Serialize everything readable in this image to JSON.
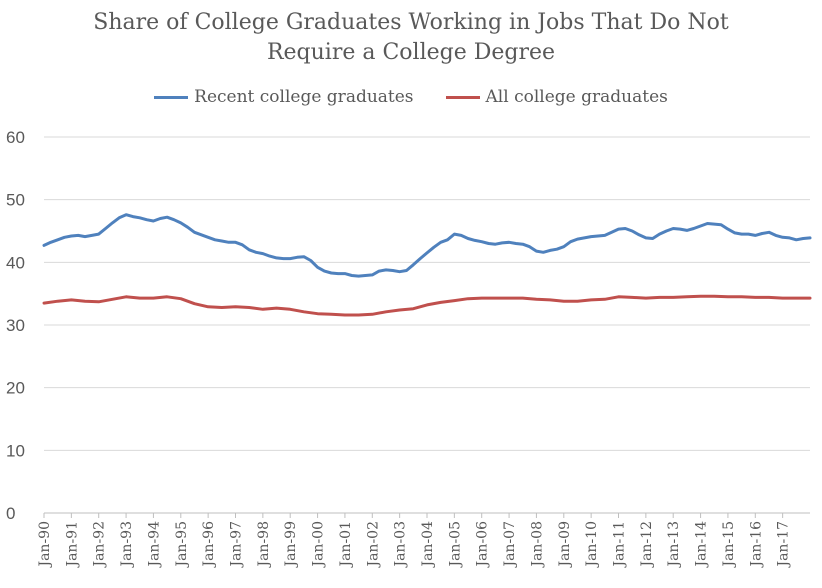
{
  "chart_data": {
    "type": "line",
    "title": "Share of College Graduates Working in Jobs That Do Not",
    "title_line2": "Require a College Degree",
    "legend_position": "top",
    "grid": true,
    "ylim": [
      0,
      60
    ],
    "yticks": [
      "0",
      "10",
      "20",
      "30",
      "40",
      "50",
      "60"
    ],
    "x": [
      "Jan-90",
      "Jan-91",
      "Jan-92",
      "Jan-93",
      "Jan-94",
      "Jan-95",
      "Jan-96",
      "Jan-97",
      "Jan-98",
      "Jan-99",
      "Jan-00",
      "Jan-01",
      "Jan-02",
      "Jan-03",
      "Jan-04",
      "Jan-05",
      "Jan-06",
      "Jan-07",
      "Jan-08",
      "Jan-09",
      "Jan-10",
      "Jan-11",
      "Jan-12",
      "Jan-13",
      "Jan-14",
      "Jan-15",
      "Jan-16",
      "Jan-17"
    ],
    "series": [
      {
        "name": "Recent college graduates",
        "color": "#4f81bd",
        "points": [
          [
            0.0,
            42.7
          ],
          [
            0.25,
            43.2
          ],
          [
            0.5,
            43.6
          ],
          [
            0.75,
            44.0
          ],
          [
            1.0,
            44.2
          ],
          [
            1.25,
            44.3
          ],
          [
            1.5,
            44.1
          ],
          [
            1.75,
            44.3
          ],
          [
            2.0,
            44.5
          ],
          [
            2.25,
            45.4
          ],
          [
            2.5,
            46.3
          ],
          [
            2.75,
            47.1
          ],
          [
            3.0,
            47.6
          ],
          [
            3.25,
            47.3
          ],
          [
            3.5,
            47.1
          ],
          [
            3.75,
            46.8
          ],
          [
            4.0,
            46.6
          ],
          [
            4.25,
            47.0
          ],
          [
            4.5,
            47.2
          ],
          [
            4.75,
            46.8
          ],
          [
            5.0,
            46.3
          ],
          [
            5.25,
            45.6
          ],
          [
            5.5,
            44.8
          ],
          [
            5.75,
            44.4
          ],
          [
            6.0,
            44.0
          ],
          [
            6.25,
            43.6
          ],
          [
            6.5,
            43.4
          ],
          [
            6.75,
            43.2
          ],
          [
            7.0,
            43.2
          ],
          [
            7.25,
            42.8
          ],
          [
            7.5,
            42.0
          ],
          [
            7.75,
            41.6
          ],
          [
            8.0,
            41.4
          ],
          [
            8.25,
            41.0
          ],
          [
            8.5,
            40.7
          ],
          [
            8.75,
            40.6
          ],
          [
            9.0,
            40.6
          ],
          [
            9.25,
            40.8
          ],
          [
            9.5,
            40.9
          ],
          [
            9.75,
            40.3
          ],
          [
            10.0,
            39.2
          ],
          [
            10.25,
            38.6
          ],
          [
            10.5,
            38.3
          ],
          [
            10.75,
            38.2
          ],
          [
            11.0,
            38.2
          ],
          [
            11.25,
            37.9
          ],
          [
            11.5,
            37.8
          ],
          [
            11.75,
            37.9
          ],
          [
            12.0,
            38.0
          ],
          [
            12.25,
            38.6
          ],
          [
            12.5,
            38.8
          ],
          [
            12.75,
            38.7
          ],
          [
            13.0,
            38.5
          ],
          [
            13.25,
            38.7
          ],
          [
            13.5,
            39.6
          ],
          [
            13.75,
            40.6
          ],
          [
            14.0,
            41.5
          ],
          [
            14.25,
            42.4
          ],
          [
            14.5,
            43.2
          ],
          [
            14.75,
            43.6
          ],
          [
            15.0,
            44.5
          ],
          [
            15.25,
            44.3
          ],
          [
            15.5,
            43.8
          ],
          [
            15.75,
            43.5
          ],
          [
            16.0,
            43.3
          ],
          [
            16.25,
            43.0
          ],
          [
            16.5,
            42.9
          ],
          [
            16.75,
            43.1
          ],
          [
            17.0,
            43.2
          ],
          [
            17.25,
            43.0
          ],
          [
            17.5,
            42.9
          ],
          [
            17.75,
            42.5
          ],
          [
            18.0,
            41.8
          ],
          [
            18.25,
            41.6
          ],
          [
            18.5,
            41.9
          ],
          [
            18.75,
            42.1
          ],
          [
            19.0,
            42.5
          ],
          [
            19.25,
            43.3
          ],
          [
            19.5,
            43.7
          ],
          [
            19.75,
            43.9
          ],
          [
            20.0,
            44.1
          ],
          [
            20.25,
            44.2
          ],
          [
            20.5,
            44.3
          ],
          [
            20.75,
            44.8
          ],
          [
            21.0,
            45.3
          ],
          [
            21.25,
            45.4
          ],
          [
            21.5,
            45.0
          ],
          [
            21.75,
            44.4
          ],
          [
            22.0,
            43.9
          ],
          [
            22.25,
            43.8
          ],
          [
            22.5,
            44.5
          ],
          [
            22.75,
            45.0
          ],
          [
            23.0,
            45.4
          ],
          [
            23.25,
            45.3
          ],
          [
            23.5,
            45.1
          ],
          [
            23.75,
            45.4
          ],
          [
            24.0,
            45.8
          ],
          [
            24.25,
            46.2
          ],
          [
            24.5,
            46.1
          ],
          [
            24.75,
            46.0
          ],
          [
            25.0,
            45.3
          ],
          [
            25.25,
            44.7
          ],
          [
            25.5,
            44.5
          ],
          [
            25.75,
            44.5
          ],
          [
            26.0,
            44.3
          ],
          [
            26.25,
            44.6
          ],
          [
            26.5,
            44.8
          ],
          [
            26.75,
            44.3
          ],
          [
            27.0,
            44.0
          ],
          [
            27.25,
            43.9
          ],
          [
            27.5,
            43.6
          ],
          [
            27.75,
            43.8
          ],
          [
            28.0,
            43.9
          ]
        ]
      },
      {
        "name": "All college graduates",
        "color": "#c0504d",
        "points": [
          [
            0.0,
            33.5
          ],
          [
            0.5,
            33.8
          ],
          [
            1.0,
            34.0
          ],
          [
            1.5,
            33.8
          ],
          [
            2.0,
            33.7
          ],
          [
            2.5,
            34.1
          ],
          [
            3.0,
            34.5
          ],
          [
            3.5,
            34.3
          ],
          [
            4.0,
            34.3
          ],
          [
            4.5,
            34.5
          ],
          [
            5.0,
            34.2
          ],
          [
            5.5,
            33.4
          ],
          [
            6.0,
            32.9
          ],
          [
            6.5,
            32.8
          ],
          [
            7.0,
            32.9
          ],
          [
            7.5,
            32.8
          ],
          [
            8.0,
            32.5
          ],
          [
            8.5,
            32.7
          ],
          [
            9.0,
            32.5
          ],
          [
            9.5,
            32.1
          ],
          [
            10.0,
            31.8
          ],
          [
            10.5,
            31.7
          ],
          [
            11.0,
            31.6
          ],
          [
            11.5,
            31.6
          ],
          [
            12.0,
            31.7
          ],
          [
            12.5,
            32.1
          ],
          [
            13.0,
            32.4
          ],
          [
            13.5,
            32.6
          ],
          [
            14.0,
            33.2
          ],
          [
            14.5,
            33.6
          ],
          [
            15.0,
            33.9
          ],
          [
            15.5,
            34.2
          ],
          [
            16.0,
            34.3
          ],
          [
            16.5,
            34.3
          ],
          [
            17.0,
            34.3
          ],
          [
            17.5,
            34.3
          ],
          [
            18.0,
            34.1
          ],
          [
            18.5,
            34.0
          ],
          [
            19.0,
            33.8
          ],
          [
            19.5,
            33.8
          ],
          [
            20.0,
            34.0
          ],
          [
            20.5,
            34.1
          ],
          [
            21.0,
            34.5
          ],
          [
            21.5,
            34.4
          ],
          [
            22.0,
            34.3
          ],
          [
            22.5,
            34.4
          ],
          [
            23.0,
            34.4
          ],
          [
            23.5,
            34.5
          ],
          [
            24.0,
            34.6
          ],
          [
            24.5,
            34.6
          ],
          [
            25.0,
            34.5
          ],
          [
            25.5,
            34.5
          ],
          [
            26.0,
            34.4
          ],
          [
            26.5,
            34.4
          ],
          [
            27.0,
            34.3
          ],
          [
            27.5,
            34.3
          ],
          [
            28.0,
            34.3
          ]
        ]
      }
    ]
  }
}
